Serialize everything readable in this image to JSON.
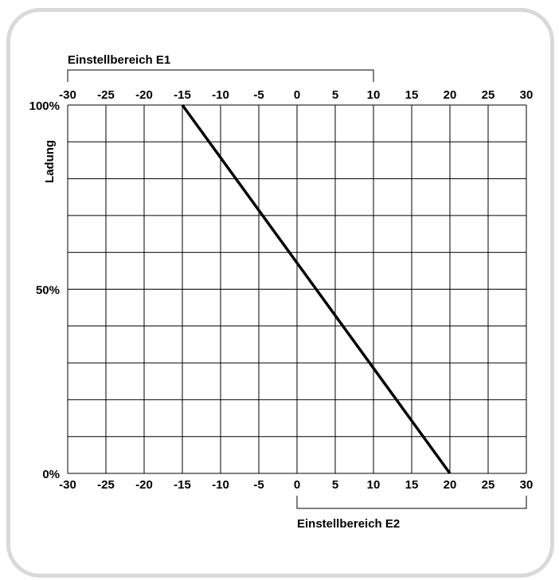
{
  "chart_data": {
    "type": "line",
    "xlabel": "",
    "ylabel": "Ladung",
    "x_ticks_top": [
      "-30",
      "-25",
      "-20",
      "-15",
      "-10",
      "-5",
      "0",
      "5",
      "10",
      "15",
      "20",
      "25",
      "30"
    ],
    "x_ticks_bottom": [
      "-30",
      "-25",
      "-20",
      "-15",
      "-10",
      "-5",
      "0",
      "5",
      "10",
      "15",
      "20",
      "25",
      "30"
    ],
    "x_range": [
      -30,
      30
    ],
    "y_range": [
      0,
      100
    ],
    "y_ticks": [
      {
        "value": 100,
        "label": "100%"
      },
      {
        "value": 50,
        "label": "50%"
      },
      {
        "value": 0,
        "label": "0%"
      }
    ],
    "grid": true,
    "series": [
      {
        "values": [
          {
            "x": -15,
            "y": 100
          },
          {
            "x": 20,
            "y": 0
          }
        ]
      }
    ],
    "ranges": [
      {
        "label": "Einstellbereich E1",
        "from": -30,
        "to": 10,
        "position": "top"
      },
      {
        "label": "Einstellbereich E2",
        "from": 0,
        "to": 30,
        "position": "bottom"
      }
    ],
    "line_color": "#000000",
    "grid_color": "#000000"
  }
}
